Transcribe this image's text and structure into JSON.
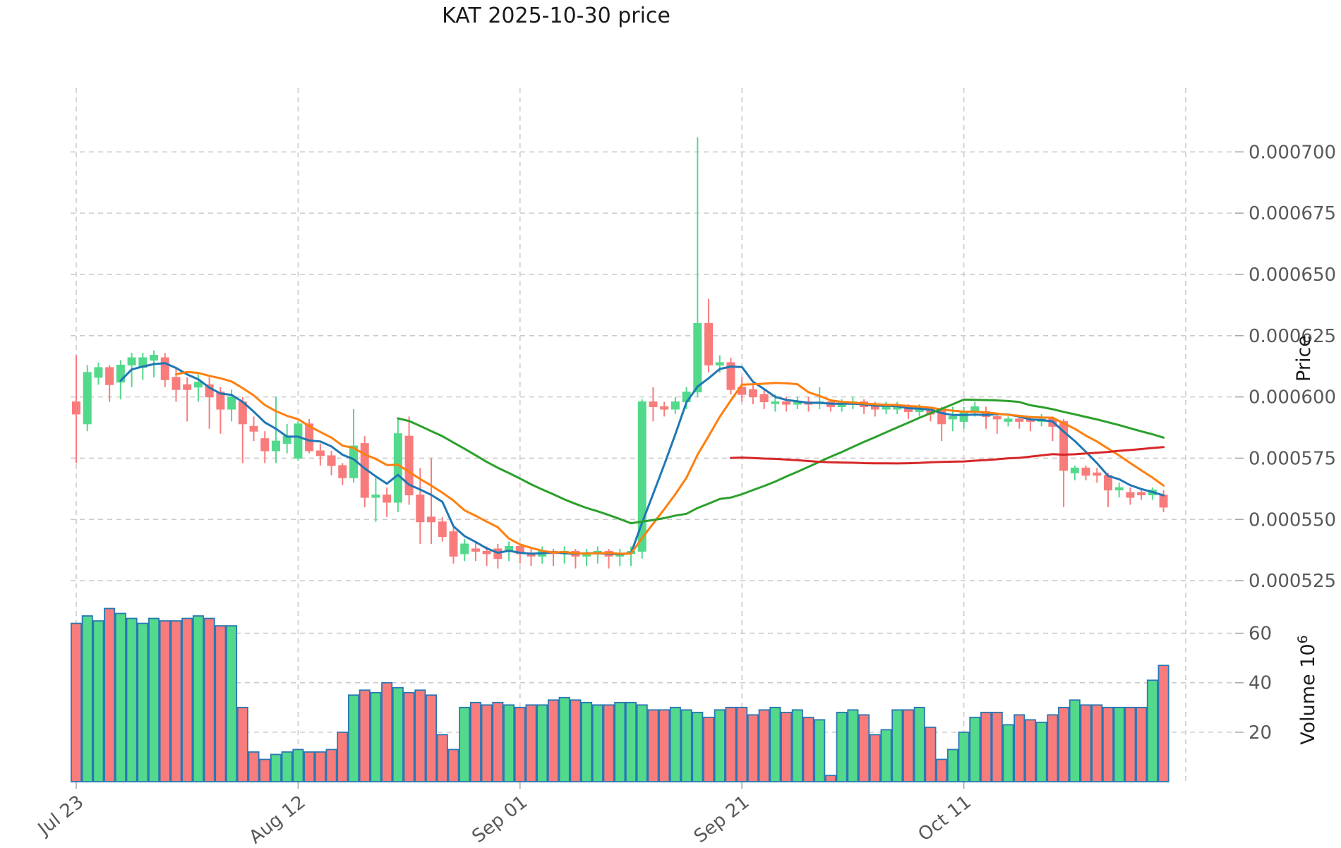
{
  "title": "KAT  2025-10-30  price",
  "price_axis": {
    "label": "Price",
    "tick_labels": [
      "0.000700",
      "0.000675",
      "0.000650",
      "0.000625",
      "0.000600",
      "0.000575",
      "0.000550",
      "0.000525"
    ],
    "tick_values_micro": [
      700,
      675,
      650,
      625,
      600,
      575,
      550,
      525
    ]
  },
  "volume_axis": {
    "label": "Volume",
    "scale_base": "10",
    "scale_exponent": "6",
    "tick_labels": [
      "60",
      "40",
      "20"
    ],
    "tick_values": [
      60,
      40,
      20
    ]
  },
  "x_axis": {
    "tick_labels": [
      "Jul 23",
      "Aug 12",
      "Sep 01",
      "Sep 21",
      "Oct 11"
    ],
    "tick_day_indices": [
      0,
      20,
      40,
      60,
      80
    ],
    "unlabeled_gridline_day": 100
  },
  "chart_data": {
    "type": "candlestick",
    "title": "KAT  2025-10-30  price",
    "price_unit": "1e-6",
    "volume_unit": "1e6",
    "date_start": "Jul 23",
    "date_end": "Oct 29",
    "ylim_price_micro": [
      521,
      726
    ],
    "ylim_volume_millions": [
      0,
      75
    ],
    "grid": true,
    "legend": false,
    "moving_averages": [
      {
        "name": "MA5",
        "window": 5,
        "color": "#1f77b4"
      },
      {
        "name": "MA10",
        "window": 10,
        "color": "#ff7f0e"
      },
      {
        "name": "MA30",
        "window": 30,
        "color": "#2ca02c"
      },
      {
        "name": "MA60",
        "window": 60,
        "color": "#d62728"
      }
    ],
    "candles_ohlcv_micro": [
      [
        598,
        617,
        573,
        593,
        64
      ],
      [
        589,
        613,
        586,
        610,
        67
      ],
      [
        608,
        614,
        605,
        612,
        65
      ],
      [
        612,
        613,
        598,
        605,
        70
      ],
      [
        606,
        615,
        599,
        613,
        68
      ],
      [
        613,
        618,
        604,
        616,
        66
      ],
      [
        612,
        618,
        607,
        616,
        64
      ],
      [
        615,
        619,
        608,
        617,
        66
      ],
      [
        616,
        618,
        604,
        607,
        65
      ],
      [
        608,
        612,
        598,
        603,
        65
      ],
      [
        605,
        608,
        590,
        603,
        66
      ],
      [
        604,
        610,
        598,
        606,
        67
      ],
      [
        605,
        608,
        587,
        600,
        66
      ],
      [
        602,
        604,
        585,
        595,
        63
      ],
      [
        595,
        603,
        590,
        600,
        63
      ],
      [
        598,
        600,
        573,
        589,
        30
      ],
      [
        588,
        592,
        582,
        586,
        12
      ],
      [
        583,
        586,
        573,
        578,
        9
      ],
      [
        578,
        600,
        573,
        582,
        11
      ],
      [
        581,
        589,
        577,
        584,
        12
      ],
      [
        575,
        590,
        574,
        589,
        13
      ],
      [
        589,
        591,
        577,
        578,
        12
      ],
      [
        578,
        581,
        572,
        576,
        12
      ],
      [
        576,
        578,
        568,
        572,
        13
      ],
      [
        572,
        573,
        564,
        567,
        20
      ],
      [
        567,
        595,
        565,
        580,
        35
      ],
      [
        581,
        584,
        555,
        559,
        37
      ],
      [
        559,
        567,
        549,
        560,
        36
      ],
      [
        560,
        563,
        551,
        557,
        40
      ],
      [
        557,
        591,
        553,
        585,
        38
      ],
      [
        584,
        592,
        556,
        560,
        36
      ],
      [
        560,
        571,
        540,
        549,
        37
      ],
      [
        551,
        575,
        540,
        549,
        35
      ],
      [
        549,
        551,
        541,
        543,
        19
      ],
      [
        545,
        547,
        532,
        535,
        13
      ],
      [
        536,
        542,
        533,
        540,
        30
      ],
      [
        538,
        541,
        533,
        537,
        32
      ],
      [
        537,
        539,
        531,
        536,
        31
      ],
      [
        538,
        540,
        530,
        534,
        32
      ],
      [
        537,
        541,
        533,
        539,
        31
      ],
      [
        539,
        540,
        532,
        536,
        30
      ],
      [
        536,
        538,
        531,
        535,
        31
      ],
      [
        535,
        539,
        532,
        537,
        31
      ],
      [
        537,
        538,
        531,
        536,
        33
      ],
      [
        536,
        539,
        532,
        537,
        34
      ],
      [
        537,
        538,
        530,
        535,
        33
      ],
      [
        535,
        538,
        531,
        536,
        32
      ],
      [
        536,
        539,
        532,
        537,
        31
      ],
      [
        537,
        538,
        530,
        535,
        31
      ],
      [
        535,
        538,
        531,
        536,
        32
      ],
      [
        536,
        539,
        531,
        537,
        32
      ],
      [
        537,
        599,
        534,
        598,
        31
      ],
      [
        598,
        604,
        590,
        596,
        29
      ],
      [
        596,
        598,
        592,
        595,
        29
      ],
      [
        595,
        600,
        593,
        598,
        30
      ],
      [
        598,
        604,
        595,
        602,
        29
      ],
      [
        602,
        706,
        600,
        630,
        28
      ],
      [
        630,
        640,
        610,
        613,
        26
      ],
      [
        613,
        617,
        610,
        614,
        29
      ],
      [
        614,
        616,
        601,
        603,
        30
      ],
      [
        604,
        608,
        598,
        601,
        30
      ],
      [
        603,
        605,
        597,
        600,
        27
      ],
      [
        601,
        603,
        595,
        598,
        29
      ],
      [
        598,
        601,
        594,
        598,
        30
      ],
      [
        598,
        600,
        594,
        597,
        28
      ],
      [
        597,
        600,
        595,
        598,
        29
      ],
      [
        598,
        600,
        594,
        597,
        26
      ],
      [
        598,
        604,
        595,
        598,
        25
      ],
      [
        598,
        599,
        594,
        596,
        2.5
      ],
      [
        596,
        599,
        594,
        597,
        28
      ],
      [
        597,
        600,
        595,
        598,
        29
      ],
      [
        598,
        599,
        593,
        596,
        27
      ],
      [
        596,
        598,
        592,
        595,
        19
      ],
      [
        595,
        598,
        593,
        596,
        21
      ],
      [
        595,
        598,
        593,
        596,
        29
      ],
      [
        596,
        597,
        591,
        594,
        29
      ],
      [
        594,
        597,
        592,
        595,
        30
      ],
      [
        595,
        596,
        590,
        593,
        22
      ],
      [
        595,
        596,
        582,
        589,
        9
      ],
      [
        591,
        596,
        586,
        592,
        13
      ],
      [
        590,
        596,
        587,
        594,
        20
      ],
      [
        594,
        598,
        592,
        596,
        26
      ],
      [
        594,
        596,
        587,
        592,
        28
      ],
      [
        592,
        593,
        585,
        591,
        28
      ],
      [
        590,
        592,
        588,
        591,
        23
      ],
      [
        591,
        592,
        587,
        590,
        27
      ],
      [
        591,
        592,
        586,
        590,
        25
      ],
      [
        590,
        593,
        588,
        591,
        24
      ],
      [
        591,
        592,
        582,
        588,
        27
      ],
      [
        590,
        591,
        555,
        570,
        30
      ],
      [
        569,
        572,
        566,
        571,
        33
      ],
      [
        571,
        572,
        566,
        568,
        31
      ],
      [
        569,
        571,
        565,
        568,
        31
      ],
      [
        568,
        569,
        555,
        562,
        30
      ],
      [
        562,
        565,
        559,
        563,
        30
      ],
      [
        561,
        563,
        556,
        559,
        30
      ],
      [
        561,
        562,
        558,
        560,
        30
      ],
      [
        560,
        563,
        558,
        562,
        41
      ],
      [
        560,
        562,
        553,
        555,
        47
      ]
    ]
  },
  "colors": {
    "up": "#53d98b",
    "down": "#f97c7c",
    "volume_bar_edge": "#2878b5",
    "grid": "#cbcbcb",
    "tick_mark": "#a8a8a8",
    "tick_text": "#595959",
    "title_text": "#1a1a1a",
    "background": "#ffffff"
  }
}
